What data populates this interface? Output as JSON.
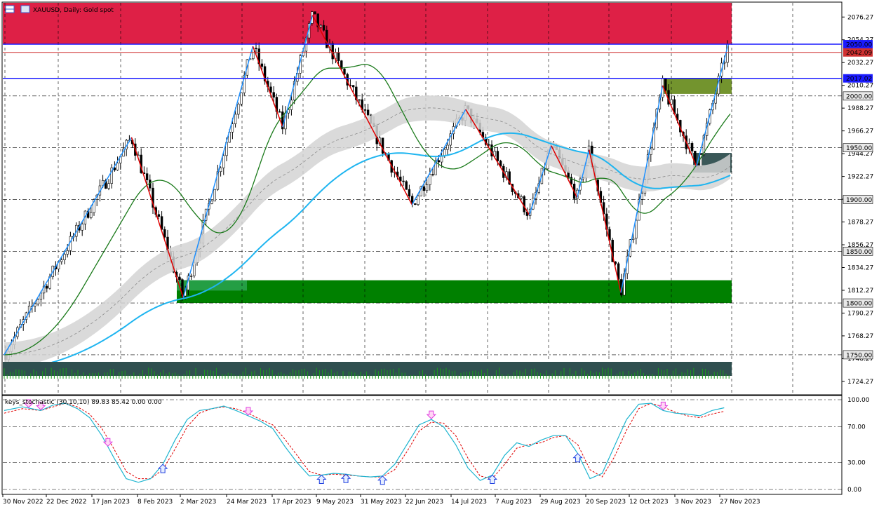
{
  "header": {
    "symbol": "XAUUSD",
    "timeframe": "Daily",
    "description": "Gold spot",
    "title": "XAUUSD, Daily:  Gold spot"
  },
  "chart_data": {
    "type": "line",
    "price_axis": {
      "ticks": [
        "2076.27",
        "2054.27",
        "2032.27",
        "2010.27",
        "1988.27",
        "1966.27",
        "1944.27",
        "1922.27",
        "1900.27",
        "1878.27",
        "1856.27",
        "1834.27",
        "1812.27",
        "1790.27",
        "1768.27",
        "1746.27",
        "1724.27"
      ],
      "ylim": [
        1712,
        2090
      ]
    },
    "price_tags": [
      {
        "label": "2050.00",
        "value": 2050.0,
        "color": "#1a1aff"
      },
      {
        "label": "2042.09",
        "value": 2042.09,
        "color": "#d03030"
      },
      {
        "label": "2017.02",
        "value": 2017.02,
        "color": "#1a1aff"
      },
      {
        "label": "2000.00",
        "value": 2000.0,
        "color": "#e8e8e8"
      },
      {
        "label": "1950.00",
        "value": 1950.0,
        "color": "#e8e8e8"
      },
      {
        "label": "1900.00",
        "value": 1900.0,
        "color": "#e8e8e8"
      },
      {
        "label": "1850.00",
        "value": 1850.0,
        "color": "#e8e8e8"
      },
      {
        "label": "1800.00",
        "value": 1800.0,
        "color": "#e8e8e8"
      },
      {
        "label": "1750.00",
        "value": 1750.0,
        "color": "#e8e8e8"
      }
    ],
    "x_axis_labels": [
      "30 Nov 2022",
      "22 Dec 2022",
      "17 Jan 2023",
      "8 Feb 2023",
      "2 Mar 2023",
      "24 Mar 2023",
      "17 Apr 2023",
      "9 May 2023",
      "31 May 2023",
      "22 Jun 2023",
      "14 Jul 2023",
      "7 Aug 2023",
      "29 Aug 2023",
      "20 Sep 2023",
      "12 Oct 2023",
      "3 Nov 2023",
      "27 Nov 2023"
    ],
    "zigzag": [
      {
        "date": "2022-11-30",
        "price": 1750
      },
      {
        "date": "2023-02-02",
        "price": 1960
      },
      {
        "date": "2023-02-28",
        "price": 1805
      },
      {
        "date": "2023-04-04",
        "price": 2048
      },
      {
        "date": "2023-04-19",
        "price": 1970
      },
      {
        "date": "2023-05-04",
        "price": 2078
      },
      {
        "date": "2023-06-23",
        "price": 1895
      },
      {
        "date": "2023-07-20",
        "price": 1987
      },
      {
        "date": "2023-08-21",
        "price": 1885
      },
      {
        "date": "2023-09-01",
        "price": 1952
      },
      {
        "date": "2023-09-14",
        "price": 1902
      },
      {
        "date": "2023-09-20",
        "price": 1948
      },
      {
        "date": "2023-10-06",
        "price": 1810
      },
      {
        "date": "2023-10-27",
        "price": 2010
      },
      {
        "date": "2023-11-13",
        "price": 1932
      },
      {
        "date": "2023-11-29",
        "price": 2050
      }
    ],
    "zones": [
      {
        "name": "resistance",
        "from": 2050,
        "to": 2090,
        "color": "#dc143c"
      },
      {
        "name": "support",
        "from": 1800,
        "to": 1822,
        "color": "#008000"
      },
      {
        "name": "upper-box",
        "from": 2002,
        "to": 2017,
        "color": "#6b8e23"
      },
      {
        "name": "lower-box",
        "from": 1926,
        "to": 1945,
        "color": "#2f4f4f"
      }
    ],
    "indicator": {
      "name": "keys_stochastic",
      "label": "keys_stochastic (30,10,10) 89.83 85.42 0.00 0.00",
      "params": [
        30,
        10,
        10
      ],
      "main_value": 89.83,
      "signal_value": 85.42,
      "levels": [
        "100.00",
        "70.00",
        "30.00",
        "0.00"
      ],
      "ylim": [
        0,
        100
      ],
      "main_points": [
        [
          0,
          88
        ],
        [
          3,
          92
        ],
        [
          6,
          88
        ],
        [
          8,
          94
        ],
        [
          10,
          96
        ],
        [
          12,
          90
        ],
        [
          14,
          80
        ],
        [
          16,
          60
        ],
        [
          18,
          35
        ],
        [
          20,
          12
        ],
        [
          22,
          8
        ],
        [
          24,
          12
        ],
        [
          26,
          28
        ],
        [
          28,
          55
        ],
        [
          30,
          78
        ],
        [
          32,
          88
        ],
        [
          34,
          90
        ],
        [
          36,
          93
        ],
        [
          38,
          88
        ],
        [
          40,
          82
        ],
        [
          42,
          76
        ],
        [
          44,
          68
        ],
        [
          46,
          48
        ],
        [
          48,
          30
        ],
        [
          50,
          15
        ],
        [
          52,
          16
        ],
        [
          54,
          18
        ],
        [
          56,
          17
        ],
        [
          58,
          15
        ],
        [
          60,
          14
        ],
        [
          62,
          15
        ],
        [
          64,
          28
        ],
        [
          66,
          50
        ],
        [
          68,
          72
        ],
        [
          70,
          78
        ],
        [
          72,
          70
        ],
        [
          74,
          50
        ],
        [
          76,
          24
        ],
        [
          78,
          10
        ],
        [
          80,
          16
        ],
        [
          82,
          38
        ],
        [
          84,
          52
        ],
        [
          86,
          48
        ],
        [
          88,
          55
        ],
        [
          90,
          60
        ],
        [
          92,
          60
        ],
        [
          94,
          40
        ],
        [
          96,
          12
        ],
        [
          98,
          18
        ],
        [
          100,
          48
        ],
        [
          102,
          78
        ],
        [
          104,
          95
        ],
        [
          106,
          96
        ],
        [
          108,
          88
        ],
        [
          110,
          85
        ],
        [
          112,
          84
        ],
        [
          114,
          82
        ],
        [
          116,
          88
        ],
        [
          118,
          91
        ]
      ],
      "signal_points": [
        [
          0,
          85
        ],
        [
          3,
          90
        ],
        [
          6,
          88
        ],
        [
          8,
          92
        ],
        [
          10,
          96
        ],
        [
          12,
          92
        ],
        [
          14,
          84
        ],
        [
          16,
          68
        ],
        [
          18,
          45
        ],
        [
          20,
          20
        ],
        [
          22,
          12
        ],
        [
          24,
          12
        ],
        [
          26,
          22
        ],
        [
          28,
          45
        ],
        [
          30,
          70
        ],
        [
          32,
          85
        ],
        [
          34,
          90
        ],
        [
          36,
          92
        ],
        [
          38,
          90
        ],
        [
          40,
          85
        ],
        [
          42,
          78
        ],
        [
          44,
          72
        ],
        [
          46,
          56
        ],
        [
          48,
          38
        ],
        [
          50,
          20
        ],
        [
          52,
          16
        ],
        [
          54,
          17
        ],
        [
          56,
          16
        ],
        [
          58,
          15
        ],
        [
          60,
          14
        ],
        [
          62,
          14
        ],
        [
          64,
          22
        ],
        [
          66,
          42
        ],
        [
          68,
          65
        ],
        [
          70,
          75
        ],
        [
          72,
          74
        ],
        [
          74,
          60
        ],
        [
          76,
          35
        ],
        [
          78,
          15
        ],
        [
          80,
          12
        ],
        [
          82,
          28
        ],
        [
          84,
          46
        ],
        [
          86,
          50
        ],
        [
          88,
          52
        ],
        [
          90,
          58
        ],
        [
          92,
          60
        ],
        [
          94,
          50
        ],
        [
          96,
          22
        ],
        [
          98,
          14
        ],
        [
          100,
          36
        ],
        [
          102,
          66
        ],
        [
          104,
          90
        ],
        [
          106,
          96
        ],
        [
          108,
          92
        ],
        [
          110,
          86
        ],
        [
          112,
          82
        ],
        [
          114,
          80
        ],
        [
          116,
          84
        ],
        [
          118,
          87
        ]
      ],
      "arrows_down": [
        4,
        6,
        17,
        40,
        70,
        108
      ],
      "arrows_up": [
        26,
        52,
        56,
        62,
        80,
        94
      ]
    }
  }
}
